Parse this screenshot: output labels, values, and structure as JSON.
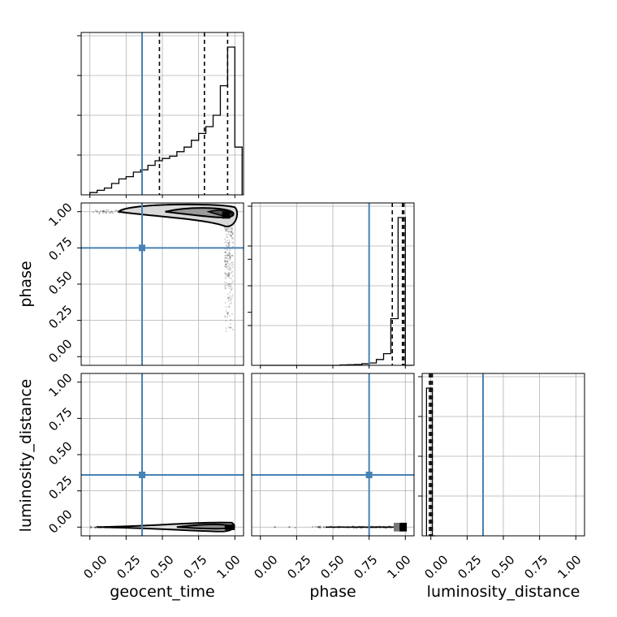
{
  "chart_data": {
    "type": "corner",
    "params": [
      "geocent_time",
      "phase",
      "luminosity_distance"
    ],
    "labels": [
      "geocent_time",
      "phase",
      "luminosity_distance"
    ],
    "ticks": [
      "0.00",
      "0.25",
      "0.50",
      "0.75",
      "1.00"
    ],
    "lim": [
      -0.06,
      1.06
    ],
    "grid": true,
    "truths": [
      0.36,
      0.75,
      0.36
    ],
    "truth_color": "#4682b4",
    "histograms": [
      {
        "param": "geocent_time",
        "bins": [
          0.0,
          0.05,
          0.1,
          0.15,
          0.2,
          0.25,
          0.3,
          0.35,
          0.4,
          0.45,
          0.5,
          0.55,
          0.6,
          0.65,
          0.7,
          0.75,
          0.8,
          0.85,
          0.9,
          0.95,
          1.0,
          1.05
        ],
        "counts": [
          1,
          2,
          3,
          5,
          7,
          8,
          10,
          11,
          13,
          15,
          16,
          17,
          19,
          21,
          24,
          27,
          30,
          35,
          48,
          65,
          21
        ],
        "quantiles": [
          0.48,
          0.79,
          0.95
        ]
      },
      {
        "param": "phase",
        "bins": [
          0.0,
          0.05,
          0.1,
          0.15,
          0.2,
          0.25,
          0.3,
          0.35,
          0.4,
          0.45,
          0.5,
          0.55,
          0.6,
          0.65,
          0.7,
          0.75,
          0.8,
          0.85,
          0.9,
          0.95,
          1.0,
          1.05
        ],
        "counts": [
          0,
          0,
          0,
          0,
          0,
          0,
          0,
          0,
          0,
          0,
          0,
          0.2,
          0.3,
          0.4,
          0.8,
          1.2,
          3,
          6,
          24,
          76,
          0
        ],
        "quantiles": [
          0.91,
          0.98,
          0.99
        ]
      },
      {
        "param": "luminosity_distance",
        "bins": [
          -0.03,
          -0.01,
          0.01,
          0.03
        ],
        "counts": [
          100,
          100,
          0
        ],
        "quantiles": [
          -0.01,
          0.0,
          0.01
        ]
      }
    ],
    "scatter": [
      {
        "x_param": "geocent_time",
        "y_param": "phase",
        "description_points": [
          [
            0.05,
            1.0
          ],
          [
            0.1,
            1.0
          ],
          [
            0.15,
            1.0
          ],
          [
            0.2,
            1.0
          ],
          [
            0.3,
            1.01
          ],
          [
            0.5,
            0.98
          ],
          [
            0.7,
            0.96
          ],
          [
            0.9,
            0.95
          ],
          [
            0.95,
            0.7
          ],
          [
            0.96,
            0.5
          ],
          [
            0.95,
            0.3
          ],
          [
            0.97,
            0.2
          ]
        ]
      },
      {
        "x_param": "geocent_time",
        "y_param": "luminosity_distance",
        "description_points": [
          [
            0.05,
            0.0
          ],
          [
            0.3,
            0.0
          ],
          [
            0.6,
            0.0
          ],
          [
            0.9,
            0.0
          ]
        ]
      },
      {
        "x_param": "phase",
        "y_param": "luminosity_distance",
        "description_points": [
          [
            0.1,
            0.0
          ],
          [
            0.2,
            0.0
          ],
          [
            0.4,
            0.0
          ],
          [
            0.6,
            0.0
          ],
          [
            0.8,
            0.0
          ],
          [
            0.95,
            0.0
          ]
        ]
      }
    ]
  }
}
